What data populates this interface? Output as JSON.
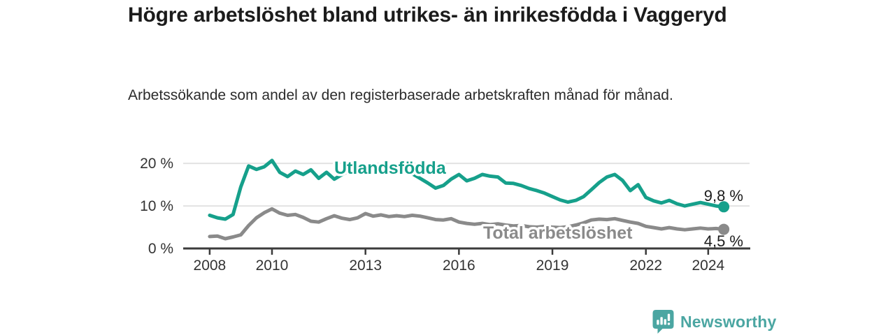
{
  "chart_data": {
    "type": "line",
    "title": "Högre arbetslöshet bland utrikes- än inrikesfödda i Vaggeryd",
    "subtitle": "Arbetssökande som andel av den registerbaserade arbetskraften månad för månad.",
    "y_unit": "%",
    "grid": "horizontal-light",
    "xlim": [
      2007.15,
      2025.35
    ],
    "ylim": [
      0,
      21.5
    ],
    "x": [
      2008,
      2008.25,
      2008.5,
      2008.75,
      2009,
      2009.25,
      2009.5,
      2009.75,
      2010,
      2010.25,
      2010.5,
      2010.75,
      2011,
      2011.25,
      2011.5,
      2011.75,
      2012,
      2012.25,
      2012.5,
      2012.75,
      2013,
      2013.25,
      2013.5,
      2013.75,
      2014,
      2014.25,
      2014.5,
      2014.75,
      2015,
      2015.25,
      2015.5,
      2015.75,
      2016,
      2016.25,
      2016.5,
      2016.75,
      2017,
      2017.25,
      2017.5,
      2017.75,
      2018,
      2018.25,
      2018.5,
      2018.75,
      2019,
      2019.25,
      2019.5,
      2019.75,
      2020,
      2020.25,
      2020.5,
      2020.75,
      2021,
      2021.25,
      2021.5,
      2021.75,
      2022,
      2022.25,
      2022.5,
      2022.75,
      2023,
      2023.25,
      2023.5,
      2023.75,
      2024,
      2024.25,
      2024.5
    ],
    "series": [
      {
        "name": "Utlandsfödda",
        "color": "#16a08b",
        "end_label": "9,8 %",
        "end_value": 9.8,
        "values": [
          7.8,
          7.2,
          6.9,
          8.0,
          14.5,
          19.4,
          18.6,
          19.2,
          20.7,
          17.9,
          16.9,
          18.2,
          17.4,
          18.5,
          16.5,
          17.9,
          16.3,
          17.4,
          18.3,
          19.0,
          18.7,
          18.3,
          18.6,
          18.2,
          18.4,
          18.0,
          17.6,
          16.5,
          15.4,
          14.2,
          14.8,
          16.3,
          17.4,
          15.9,
          16.5,
          17.4,
          17.0,
          16.8,
          15.4,
          15.3,
          14.8,
          14.1,
          13.6,
          13.0,
          12.2,
          11.4,
          10.9,
          11.3,
          12.2,
          13.8,
          15.5,
          16.8,
          17.4,
          16.0,
          13.6,
          15.0,
          12.0,
          11.2,
          10.7,
          11.3,
          10.5,
          10.0,
          10.4,
          10.8,
          10.4,
          10.0,
          9.8
        ]
      },
      {
        "name": "Total arbetslöshet",
        "color": "#8a8a8a",
        "end_label": "4,5 %",
        "end_value": 4.5,
        "values": [
          2.8,
          2.9,
          2.3,
          2.7,
          3.2,
          5.4,
          7.2,
          8.4,
          9.3,
          8.3,
          7.8,
          8.0,
          7.3,
          6.4,
          6.2,
          7.0,
          7.7,
          7.1,
          6.8,
          7.2,
          8.2,
          7.6,
          7.9,
          7.5,
          7.7,
          7.5,
          7.8,
          7.6,
          7.2,
          6.8,
          6.7,
          7.0,
          6.2,
          5.9,
          5.7,
          5.9,
          5.6,
          5.8,
          5.5,
          5.3,
          5.4,
          5.1,
          5.0,
          5.2,
          5.0,
          4.9,
          5.1,
          5.5,
          6.0,
          6.7,
          6.9,
          6.8,
          7.0,
          6.6,
          6.2,
          5.9,
          5.2,
          4.9,
          4.6,
          4.9,
          4.6,
          4.4,
          4.6,
          4.8,
          4.6,
          4.7,
          4.5
        ]
      }
    ],
    "yticks": [
      {
        "value": 0,
        "label": "0 %"
      },
      {
        "value": 10,
        "label": "10 %"
      },
      {
        "value": 20,
        "label": "20 %"
      }
    ],
    "xticks": [
      {
        "value": 2008,
        "label": "2008"
      },
      {
        "value": 2010,
        "label": "2010"
      },
      {
        "value": 2013,
        "label": "2013"
      },
      {
        "value": 2016,
        "label": "2016"
      },
      {
        "value": 2019,
        "label": "2019"
      },
      {
        "value": 2022,
        "label": "2022"
      },
      {
        "value": 2024,
        "label": "2024"
      }
    ],
    "colors": {
      "axis": "#3b3b3b",
      "gridline": "#e2e2e2",
      "tick_text": "#333333",
      "value_label_text": "#1c1c1c"
    }
  },
  "branding": {
    "logo_text": "Newsworthy",
    "logo_color": "#4BA6A2",
    "logo_icon": "bar-chart-speech-bubble-icon"
  }
}
